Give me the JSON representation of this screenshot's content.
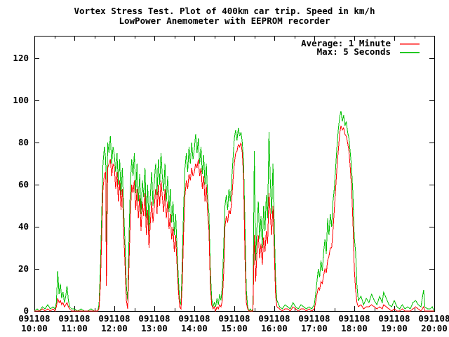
{
  "title": {
    "line1": "Vortex Stress Test. Plot of 400km car trip. Speed in km/h",
    "line2": "LowPower Anemometer with EEPROM recorder"
  },
  "legend": {
    "position": "inside-top-right",
    "entries": [
      {
        "label": "Average:  1 Minute",
        "color": "#ff0000"
      },
      {
        "label": "Max:  5 Seconds",
        "color": "#00c000"
      }
    ]
  },
  "colors": {
    "background": "#ffffff",
    "axis": "#000000",
    "average_line": "#ff0000",
    "max_line": "#00c000"
  },
  "chart_data": {
    "type": "line",
    "title": "Vortex Stress Test. Plot of 400km car trip. Speed in km/h",
    "subtitle": "LowPower Anemometer with EEPROM recorder",
    "xlabel": "",
    "ylabel": "",
    "grid": false,
    "legend_position": "inside-top-right",
    "x_unit": "minutes after 10:00 on 091108",
    "xlim": [
      0,
      600
    ],
    "ylim": [
      0,
      130.7
    ],
    "yticks": [
      0,
      20,
      40,
      60,
      80,
      100,
      120
    ],
    "x_minor_tick_every_minutes": 30,
    "xticks": [
      {
        "minute": 0,
        "date": "091108",
        "time": "10:00"
      },
      {
        "minute": 60,
        "date": "091108",
        "time": "11:00"
      },
      {
        "minute": 120,
        "date": "091108",
        "time": "12:00"
      },
      {
        "minute": 180,
        "date": "091108",
        "time": "13:00"
      },
      {
        "minute": 240,
        "date": "091108",
        "time": "14:00"
      },
      {
        "minute": 300,
        "date": "091108",
        "time": "15:00"
      },
      {
        "minute": 360,
        "date": "091108",
        "time": "16:00"
      },
      {
        "minute": 420,
        "date": "091108",
        "time": "17:00"
      },
      {
        "minute": 480,
        "date": "091108",
        "time": "18:00"
      },
      {
        "minute": 540,
        "date": "091108",
        "time": "19:00"
      },
      {
        "minute": 600,
        "date": "091108",
        "time": "20:00"
      }
    ],
    "x": [
      0,
      4,
      8,
      12,
      16,
      20,
      24,
      28,
      31,
      33,
      35,
      37,
      39,
      41,
      43,
      45,
      47,
      49,
      51,
      53,
      56,
      60,
      65,
      70,
      75,
      80,
      85,
      90,
      95,
      97,
      99,
      101,
      103,
      105,
      107,
      108,
      110,
      112,
      114,
      116,
      118,
      120,
      122,
      124,
      126,
      128,
      130,
      132,
      134,
      136,
      138,
      140,
      142,
      144,
      146,
      148,
      150,
      152,
      154,
      156,
      158,
      160,
      162,
      164,
      166,
      168,
      170,
      172,
      174,
      176,
      178,
      180,
      182,
      184,
      186,
      188,
      190,
      192,
      194,
      196,
      198,
      200,
      202,
      204,
      206,
      208,
      210,
      212,
      214,
      216,
      218,
      220,
      222,
      224,
      226,
      228,
      230,
      232,
      234,
      236,
      238,
      240,
      242,
      244,
      246,
      248,
      250,
      252,
      254,
      256,
      258,
      260,
      262,
      264,
      266,
      268,
      270,
      272,
      274,
      276,
      278,
      280,
      282,
      284,
      286,
      288,
      290,
      292,
      294,
      296,
      298,
      300,
      302,
      304,
      306,
      308,
      310,
      312,
      314,
      316,
      318,
      320,
      322,
      324,
      326,
      328,
      330,
      332,
      334,
      336,
      338,
      340,
      342,
      344,
      346,
      348,
      350,
      352,
      354,
      356,
      358,
      360,
      362,
      364,
      368,
      372,
      376,
      380,
      384,
      388,
      392,
      396,
      400,
      404,
      408,
      412,
      416,
      420,
      422,
      424,
      426,
      428,
      430,
      432,
      434,
      436,
      438,
      440,
      442,
      444,
      446,
      448,
      450,
      452,
      454,
      456,
      458,
      460,
      462,
      464,
      466,
      468,
      470,
      472,
      474,
      476,
      478,
      480,
      482,
      484,
      486,
      490,
      494,
      498,
      502,
      506,
      510,
      514,
      518,
      522,
      524,
      528,
      532,
      536,
      540,
      544,
      548,
      552,
      556,
      560,
      564,
      568,
      572,
      576,
      580,
      584,
      586,
      590,
      594,
      597,
      600
    ],
    "series": [
      {
        "name": "Average: 1 Minute",
        "color": "#ff0000",
        "values": [
          0,
          0,
          0,
          1,
          0,
          1,
          0,
          1,
          0,
          2,
          6,
          4,
          5,
          3,
          4,
          2,
          3,
          4,
          2,
          1,
          0,
          0,
          0,
          0,
          0,
          0,
          0,
          0,
          0,
          1,
          12,
          35,
          58,
          65,
          66,
          12,
          68,
          70,
          72,
          64,
          70,
          68,
          58,
          66,
          52,
          62,
          48,
          58,
          38,
          22,
          5,
          1,
          22,
          45,
          60,
          56,
          62,
          48,
          58,
          44,
          55,
          38,
          52,
          45,
          56,
          36,
          48,
          30,
          42,
          52,
          42,
          50,
          58,
          46,
          60,
          50,
          62,
          54,
          47,
          58,
          44,
          52,
          39,
          46,
          34,
          40,
          28,
          36,
          22,
          10,
          2,
          1,
          14,
          38,
          55,
          62,
          58,
          65,
          62,
          68,
          64,
          66,
          70,
          68,
          72,
          64,
          68,
          58,
          64,
          52,
          60,
          46,
          38,
          12,
          3,
          1,
          2,
          0,
          2,
          1,
          3,
          2,
          5,
          18,
          40,
          45,
          42,
          48,
          46,
          52,
          62,
          70,
          75,
          76,
          79,
          78,
          80,
          75,
          62,
          25,
          4,
          1,
          0,
          0,
          0,
          0,
          36,
          14,
          28,
          36,
          25,
          32,
          22,
          35,
          28,
          38,
          32,
          56,
          46,
          36,
          50,
          28,
          7,
          2,
          1,
          0,
          1,
          1,
          0,
          2,
          1,
          0,
          1,
          1,
          0,
          1,
          0,
          1,
          4,
          8,
          11,
          10,
          14,
          13,
          17,
          20,
          18,
          24,
          26,
          30,
          30,
          38,
          48,
          58,
          68,
          76,
          84,
          88,
          86,
          87,
          84,
          83,
          80,
          76,
          68,
          58,
          42,
          20,
          10,
          4,
          2,
          3,
          1,
          2,
          2,
          3,
          2,
          1,
          2,
          1,
          3,
          2,
          1,
          0,
          1,
          0,
          0,
          1,
          0,
          0,
          0,
          1,
          2,
          1,
          0,
          2,
          0,
          0,
          0,
          0,
          0
        ]
      },
      {
        "name": "Max: 5 Seconds",
        "color": "#00c000",
        "values": [
          0,
          1,
          0,
          2,
          1,
          3,
          1,
          2,
          1,
          4,
          19,
          8,
          13,
          6,
          9,
          4,
          7,
          12,
          5,
          2,
          1,
          1,
          0,
          1,
          0,
          0,
          1,
          0,
          0,
          3,
          20,
          45,
          70,
          78,
          72,
          30,
          80,
          75,
          83,
          70,
          78,
          74,
          66,
          75,
          60,
          72,
          55,
          68,
          48,
          32,
          12,
          5,
          35,
          60,
          72,
          64,
          75,
          56,
          70,
          52,
          65,
          46,
          62,
          54,
          68,
          44,
          60,
          38,
          55,
          66,
          50,
          62,
          70,
          55,
          72,
          60,
          75,
          64,
          57,
          70,
          52,
          64,
          47,
          58,
          42,
          52,
          36,
          46,
          30,
          16,
          5,
          3,
          25,
          50,
          68,
          75,
          66,
          78,
          70,
          80,
          72,
          77,
          84,
          75,
          82,
          70,
          78,
          65,
          74,
          60,
          70,
          54,
          46,
          20,
          6,
          2,
          4,
          2,
          6,
          3,
          8,
          5,
          12,
          30,
          50,
          55,
          48,
          58,
          52,
          62,
          72,
          82,
          86,
          81,
          87,
          83,
          85,
          80,
          70,
          40,
          10,
          2,
          0,
          1,
          0,
          1,
          76,
          24,
          40,
          52,
          34,
          45,
          30,
          50,
          38,
          55,
          44,
          85,
          62,
          46,
          70,
          40,
          14,
          5,
          2,
          1,
          3,
          2,
          1,
          4,
          2,
          1,
          3,
          2,
          1,
          2,
          1,
          3,
          8,
          14,
          20,
          16,
          24,
          19,
          28,
          34,
          27,
          44,
          36,
          46,
          40,
          52,
          58,
          68,
          78,
          86,
          92,
          95,
          90,
          93,
          88,
          90,
          85,
          82,
          75,
          68,
          55,
          35,
          28,
          12,
          5,
          7,
          3,
          6,
          4,
          8,
          5,
          3,
          7,
          4,
          9,
          6,
          3,
          2,
          5,
          2,
          1,
          3,
          1,
          2,
          1,
          4,
          5,
          3,
          2,
          10,
          2,
          1,
          1,
          2,
          0
        ]
      }
    ]
  }
}
